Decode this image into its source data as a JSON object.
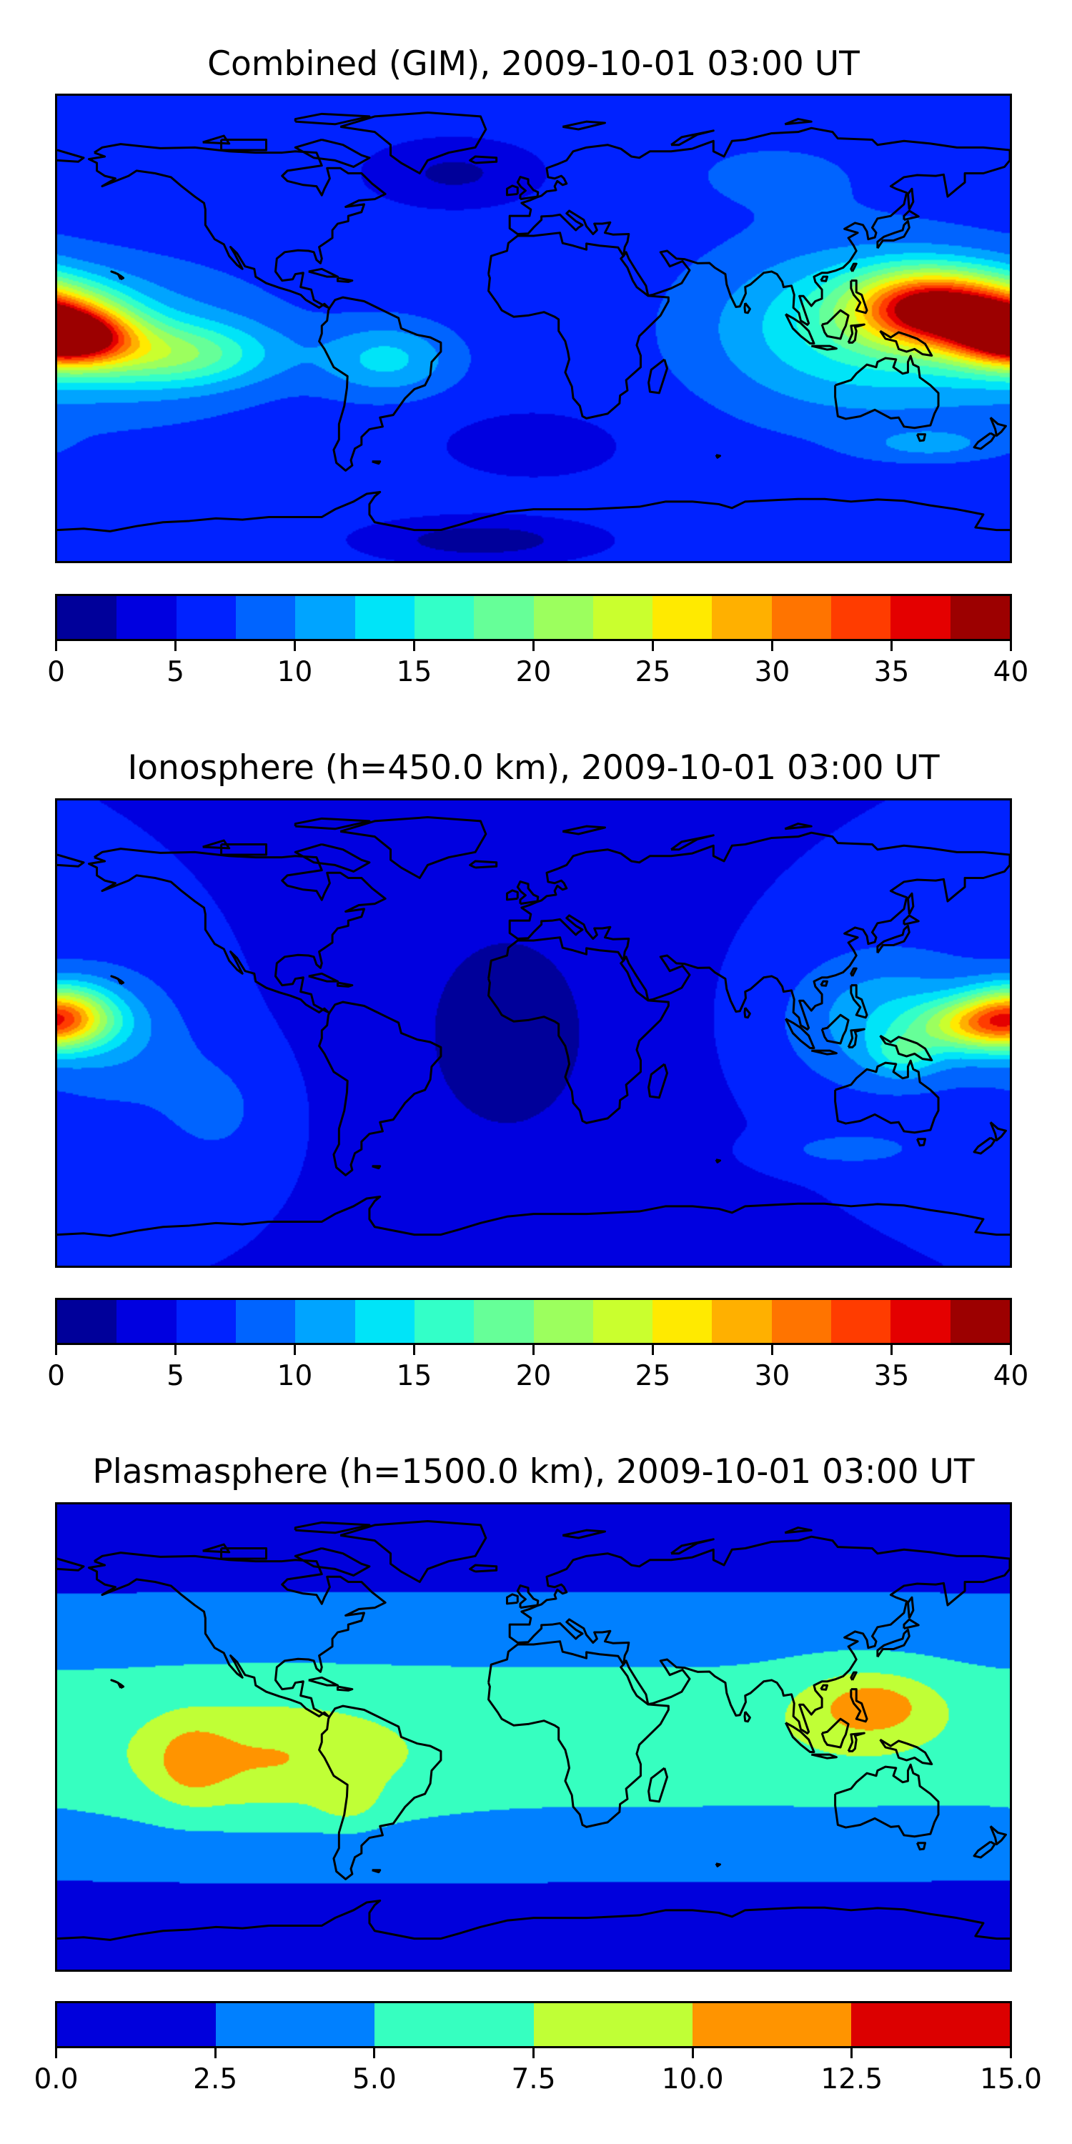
{
  "chart_data": [
    {
      "type": "heatmap",
      "title": "Combined (GIM), 2009-10-01 03:00 UT",
      "x_range_lon": [
        -180,
        180
      ],
      "y_range_lat": [
        -90,
        90
      ],
      "vmin": 0,
      "vmax": 40,
      "level_step": 2.5,
      "colors": [
        "#00009a",
        "#0000e0",
        "#0022ff",
        "#0064ff",
        "#00a4ff",
        "#00e4f8",
        "#33ffc8",
        "#66ff98",
        "#9cff5e",
        "#caff2e",
        "#ffea00",
        "#ffb000",
        "#ff7400",
        "#ff3c00",
        "#e40000",
        "#9c0000"
      ],
      "tick_labels": [
        "0",
        "5",
        "10",
        "15",
        "20",
        "25",
        "30",
        "35",
        "40"
      ],
      "tick_values": [
        0,
        5,
        10,
        15,
        20,
        25,
        30,
        35,
        40
      ],
      "background_value": 6,
      "features": [
        {
          "lon": 150,
          "lat": 8,
          "amp": 27,
          "slon": 28,
          "slat": 14
        },
        {
          "lon": 180,
          "lat": 2,
          "amp": 18,
          "slon": 25,
          "slat": 14
        },
        {
          "lon": 120,
          "lat": 0,
          "amp": 9,
          "slon": 55,
          "slat": 32
        },
        {
          "lon": -175,
          "lat": -4,
          "amp": 20,
          "slon": 22,
          "slat": 10
        },
        {
          "lon": -135,
          "lat": -10,
          "amp": 10,
          "slon": 35,
          "slat": 12
        },
        {
          "lon": -160,
          "lat": -5,
          "amp": 6,
          "slon": 60,
          "slat": 28
        },
        {
          "lon": -55,
          "lat": -12,
          "amp": 7,
          "slon": 25,
          "slat": 14
        },
        {
          "lon": -30,
          "lat": 60,
          "amp": -4,
          "slon": 30,
          "slat": 12
        },
        {
          "lon": -20,
          "lat": -82,
          "amp": -5,
          "slon": 40,
          "slat": 8
        },
        {
          "lon": 0,
          "lat": -45,
          "amp": -2,
          "slon": 40,
          "slat": 15
        },
        {
          "lon": 150,
          "lat": -45,
          "amp": 4,
          "slon": 25,
          "slat": 6
        },
        {
          "lon": 90,
          "lat": 60,
          "amp": 2,
          "slon": 40,
          "slat": 15
        }
      ]
    },
    {
      "type": "heatmap",
      "title": "Ionosphere  (h=450.0 km), 2009-10-01 03:00 UT",
      "x_range_lon": [
        -180,
        180
      ],
      "y_range_lat": [
        -90,
        90
      ],
      "vmin": 0,
      "vmax": 40,
      "level_step": 2.5,
      "colors": [
        "#00009a",
        "#0000e0",
        "#0022ff",
        "#0064ff",
        "#00a4ff",
        "#00e4f8",
        "#33ffc8",
        "#66ff98",
        "#9cff5e",
        "#caff2e",
        "#ffea00",
        "#ffb000",
        "#ff7400",
        "#ff3c00",
        "#e40000",
        "#9c0000"
      ],
      "tick_labels": [
        "0",
        "5",
        "10",
        "15",
        "20",
        "25",
        "30",
        "35",
        "40"
      ],
      "tick_values": [
        0,
        5,
        10,
        15,
        20,
        25,
        30,
        35,
        40
      ],
      "background_value": 5,
      "features": [
        {
          "lon": -10,
          "lat": 0,
          "amp": -3.2,
          "slon": 55,
          "slat": 70
        },
        {
          "lon": 170,
          "lat": 3,
          "amp": 16,
          "slon": 25,
          "slat": 10
        },
        {
          "lon": 140,
          "lat": -8,
          "amp": 6,
          "slon": 12,
          "slat": 8
        },
        {
          "lon": 135,
          "lat": 5,
          "amp": 7,
          "slon": 40,
          "slat": 28
        },
        {
          "lon": -178,
          "lat": 8,
          "amp": 14,
          "slon": 18,
          "slat": 11
        },
        {
          "lon": -160,
          "lat": 0,
          "amp": 5,
          "slon": 30,
          "slat": 28
        },
        {
          "lon": 120,
          "lat": -45,
          "amp": 4,
          "slon": 25,
          "slat": 6
        },
        {
          "lon": -120,
          "lat": -30,
          "amp": 3,
          "slon": 25,
          "slat": 25
        }
      ]
    },
    {
      "type": "heatmap",
      "title": "Plasmasphere (h=1500.0 km), 2009-10-01 03:00 UT",
      "x_range_lon": [
        -180,
        180
      ],
      "y_range_lat": [
        -90,
        90
      ],
      "vmin": 0,
      "vmax": 15,
      "level_step": 2.5,
      "colors": [
        "#0000dc",
        "#0080ff",
        "#36ffc0",
        "#c0ff36",
        "#ff9400",
        "#dc0000"
      ],
      "tick_labels": [
        "0.0",
        "2.5",
        "5.0",
        "7.5",
        "10.0",
        "12.5",
        "15.0"
      ],
      "tick_values": [
        0,
        2.5,
        5,
        7.5,
        10,
        12.5,
        15
      ],
      "background_value": 0.8,
      "features": [
        {
          "lon": 0,
          "lat": 0,
          "amp": 5.5,
          "slon": 1000,
          "slat": 52
        },
        {
          "lon": -100,
          "lat": -10,
          "amp": 4,
          "slon": 50,
          "slat": 22
        },
        {
          "lon": 125,
          "lat": 10,
          "amp": 3.5,
          "slon": 30,
          "slat": 18
        },
        {
          "lon": -130,
          "lat": -10,
          "amp": 3,
          "slon": 14,
          "slat": 16
        },
        {
          "lon": -70,
          "lat": -25,
          "amp": 2.5,
          "slon": 11,
          "slat": 9
        },
        {
          "lon": 130,
          "lat": 13,
          "amp": 2.5,
          "slon": 20,
          "slat": 10
        }
      ]
    }
  ]
}
